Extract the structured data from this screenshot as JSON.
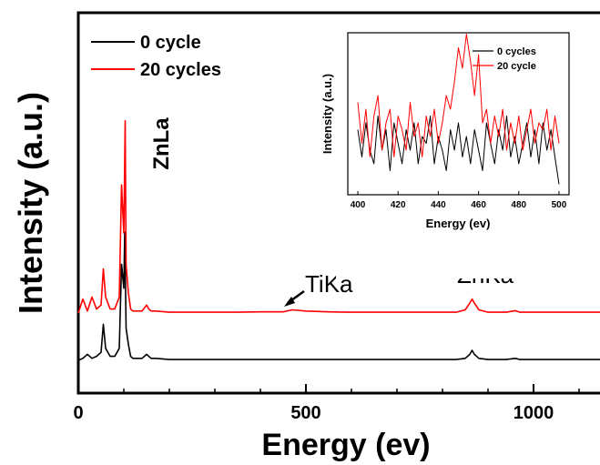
{
  "chart_data": [
    {
      "type": "line",
      "xlabel": "Energy (ev)",
      "ylabel": "Intensity (a.u.)",
      "xlim": [
        0,
        1200
      ],
      "x_ticks": [
        0,
        500,
        1000
      ],
      "x_tick_labels": [
        "0",
        "500",
        "1000"
      ],
      "legend": {
        "placement": "top-left",
        "entries": [
          "0 cycle",
          "20 cycles"
        ]
      },
      "annotations": [
        "ZnLa",
        "TiKa",
        "ZnKa"
      ],
      "series": [
        {
          "name": "0 cycle",
          "color": "#000000",
          "x": [
            0,
            10,
            20,
            30,
            40,
            50,
            55,
            60,
            70,
            80,
            90,
            95,
            100,
            102,
            105,
            110,
            115,
            120,
            130,
            140,
            150,
            155,
            160,
            170,
            200,
            250,
            300,
            350,
            400,
            450,
            500,
            550,
            600,
            650,
            700,
            750,
            800,
            830,
            850,
            860,
            865,
            870,
            880,
            900,
            940,
            960,
            970,
            1000,
            1100,
            1200
          ],
          "values": [
            0.0,
            0.05,
            0.15,
            0.05,
            0.1,
            0.2,
            0.9,
            0.3,
            0.1,
            0.1,
            0.3,
            2.4,
            1.8,
            3.2,
            0.8,
            0.4,
            0.1,
            0.05,
            0.05,
            0.05,
            0.15,
            0.1,
            0.05,
            0.05,
            0.02,
            0.02,
            0.02,
            0.02,
            0.02,
            0.02,
            0.02,
            0.02,
            0.02,
            0.02,
            0.02,
            0.02,
            0.02,
            0.02,
            0.05,
            0.15,
            0.25,
            0.15,
            0.05,
            0.02,
            0.02,
            0.05,
            0.02,
            0.02,
            0.02,
            0.02
          ]
        },
        {
          "name": "20 cycles",
          "color": "#ff0000",
          "x": [
            0,
            10,
            20,
            30,
            40,
            50,
            55,
            60,
            70,
            80,
            90,
            95,
            100,
            103,
            105,
            110,
            115,
            120,
            130,
            140,
            150,
            155,
            160,
            170,
            200,
            250,
            300,
            350,
            400,
            450,
            470,
            500,
            550,
            600,
            650,
            700,
            750,
            800,
            830,
            850,
            860,
            865,
            870,
            880,
            900,
            940,
            960,
            970,
            1000,
            1100,
            1200
          ],
          "values": [
            0.0,
            0.35,
            0.05,
            0.4,
            0.1,
            0.2,
            1.1,
            0.4,
            0.1,
            0.1,
            0.4,
            3.2,
            2.0,
            4.8,
            1.2,
            0.5,
            0.1,
            0.05,
            0.05,
            0.05,
            0.2,
            0.1,
            0.05,
            0.05,
            0.02,
            0.02,
            0.02,
            0.02,
            0.03,
            0.03,
            0.08,
            0.05,
            0.03,
            0.02,
            0.02,
            0.02,
            0.02,
            0.02,
            0.02,
            0.08,
            0.25,
            0.35,
            0.25,
            0.08,
            0.02,
            0.02,
            0.06,
            0.02,
            0.02,
            0.02,
            0.02
          ]
        }
      ]
    },
    {
      "type": "line",
      "xlabel": "Energy (ev)",
      "ylabel": "Intensity (a.u.)",
      "xlim": [
        395,
        505
      ],
      "x_ticks": [
        400,
        420,
        440,
        460,
        480,
        500
      ],
      "x_tick_labels": [
        "400",
        "420",
        "440",
        "460",
        "480",
        "500"
      ],
      "legend": {
        "placement": "top-right",
        "entries": [
          "0 cycles",
          "20 cycle"
        ]
      },
      "series": [
        {
          "name": "0 cycles",
          "color": "#000000",
          "x": [
            400,
            402,
            404,
            406,
            408,
            410,
            412,
            414,
            416,
            418,
            420,
            422,
            424,
            426,
            428,
            430,
            432,
            434,
            436,
            438,
            440,
            442,
            444,
            446,
            448,
            450,
            452,
            454,
            456,
            458,
            460,
            462,
            464,
            466,
            468,
            470,
            472,
            474,
            476,
            478,
            480,
            482,
            484,
            486,
            488,
            490,
            492,
            494,
            496,
            498,
            500
          ],
          "values": [
            0.45,
            0.25,
            0.5,
            0.3,
            0.2,
            0.55,
            0.3,
            0.45,
            0.15,
            0.5,
            0.35,
            0.2,
            0.45,
            0.3,
            0.5,
            0.2,
            0.4,
            0.35,
            0.55,
            0.2,
            0.4,
            0.3,
            0.15,
            0.45,
            0.3,
            0.5,
            0.25,
            0.4,
            0.2,
            0.45,
            0.3,
            0.15,
            0.5,
            0.35,
            0.2,
            0.45,
            0.3,
            0.55,
            0.25,
            0.4,
            0.2,
            0.35,
            0.5,
            0.25,
            0.45,
            0.2,
            0.5,
            0.3,
            0.45,
            0.25,
            0.05
          ]
        },
        {
          "name": "20 cycle",
          "color": "#ff0000",
          "x": [
            400,
            402,
            404,
            406,
            408,
            410,
            412,
            414,
            416,
            418,
            420,
            422,
            424,
            426,
            428,
            430,
            432,
            434,
            436,
            438,
            440,
            442,
            444,
            446,
            448,
            450,
            452,
            454,
            456,
            458,
            460,
            462,
            464,
            466,
            468,
            470,
            472,
            474,
            476,
            478,
            480,
            482,
            484,
            486,
            488,
            490,
            492,
            494,
            496,
            498,
            500
          ],
          "values": [
            0.65,
            0.35,
            0.6,
            0.25,
            0.55,
            0.7,
            0.3,
            0.5,
            0.6,
            0.25,
            0.55,
            0.45,
            0.3,
            0.65,
            0.4,
            0.5,
            0.25,
            0.55,
            0.4,
            0.6,
            0.35,
            0.5,
            0.7,
            0.6,
            0.8,
            1.05,
            0.9,
            1.15,
            0.95,
            0.7,
            1.0,
            0.5,
            0.6,
            0.35,
            0.55,
            0.4,
            0.6,
            0.3,
            0.5,
            0.35,
            0.55,
            0.3,
            0.45,
            0.6,
            0.35,
            0.5,
            0.45,
            0.6,
            0.3,
            0.55,
            0.35
          ]
        }
      ]
    }
  ]
}
